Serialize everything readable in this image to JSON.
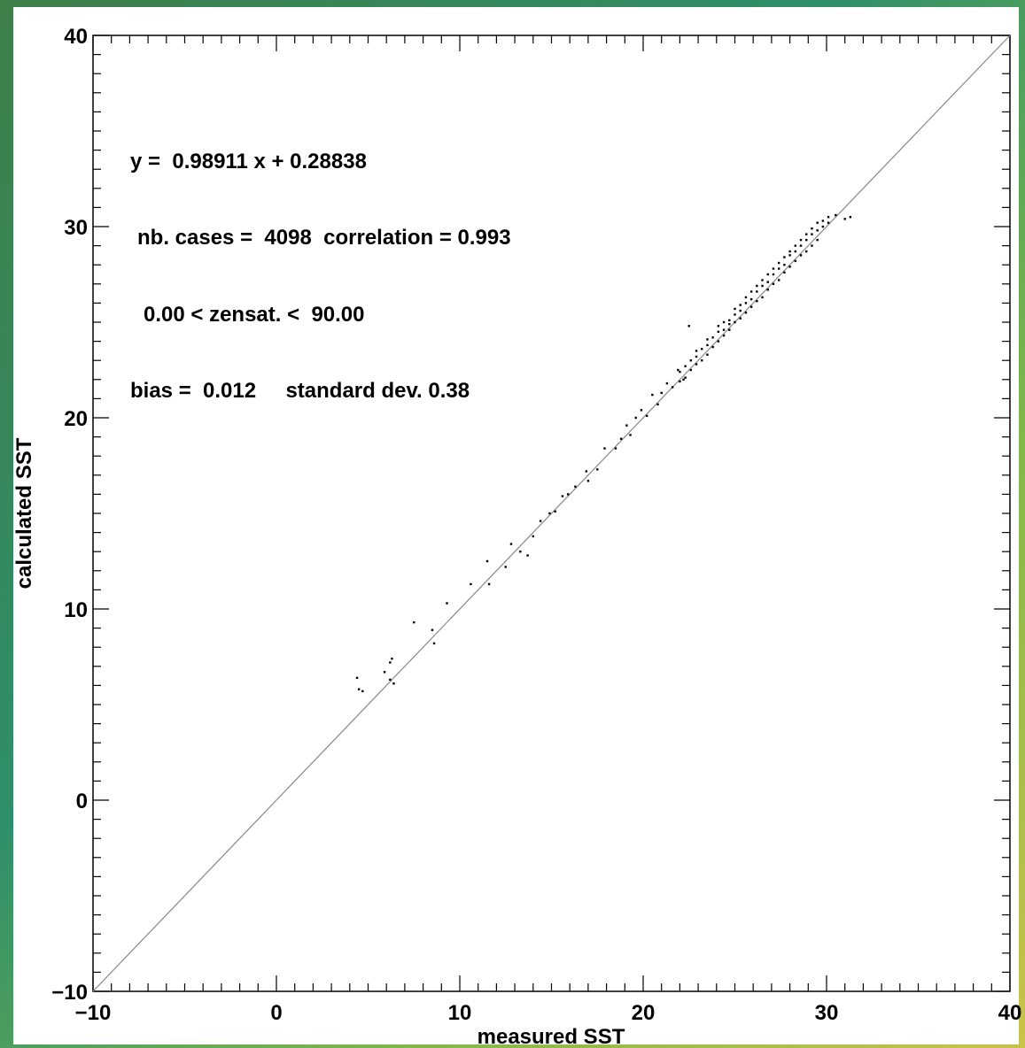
{
  "chart_data": {
    "type": "scatter",
    "x_label": "measured SST",
    "y_label": "calculated SST",
    "annotations": [
      "y =  0.98911 x + 0.28838",
      "nb. cases =  4098  correlation = 0.993",
      "0.00 < zensat. <  90.00",
      "bias =  0.012     standard dev. 0.38"
    ],
    "xlim": [
      -10,
      40
    ],
    "ylim": [
      -10,
      40
    ],
    "xticks": [
      {
        "value": -10,
        "label": "−10"
      },
      0,
      10,
      20,
      30,
      40
    ],
    "yticks": [
      {
        "value": -10,
        "label": "−10"
      },
      0,
      10,
      20,
      30,
      40
    ],
    "minor_ticks": [
      -9,
      -8,
      -7,
      -6,
      -5,
      -4,
      -3,
      -2,
      -1,
      1,
      2,
      3,
      4,
      5,
      6,
      7,
      8,
      9,
      11,
      12,
      13,
      14,
      15,
      16,
      17,
      18,
      19,
      21,
      22,
      23,
      24,
      25,
      26,
      27,
      28,
      29,
      31,
      32,
      33,
      34,
      35,
      36,
      37,
      38,
      39
    ],
    "color": "#000000",
    "line": {
      "x": [
        -10,
        40
      ],
      "y": [
        -10,
        40
      ],
      "color": "#888888"
    },
    "x": [
      4.4,
      4.5,
      4.7,
      5.9,
      6.2,
      6.3,
      6.4,
      6.2,
      7.5,
      8.5,
      8.6,
      9.3,
      10.6,
      11.5,
      11.6,
      12.5,
      12.8,
      13.3,
      13.7,
      14.0,
      14.4,
      14.9,
      15.2,
      15.6,
      15.9,
      16.3,
      16.9,
      17.0,
      17.5,
      17.9,
      18.5,
      18.8,
      19.1,
      19.3,
      19.6,
      19.9,
      20.2,
      20.5,
      20.8,
      21.0,
      21.3,
      21.6,
      21.9,
      22.2,
      22.5,
      22.0,
      22.0,
      22.3,
      22.3,
      22.6,
      22.6,
      22.9,
      22.9,
      22.9,
      23.2,
      23.2,
      23.5,
      23.5,
      23.5,
      23.8,
      23.8,
      24.1,
      24.1,
      24.1,
      24.4,
      24.4,
      24.4,
      24.7,
      24.7,
      24.7,
      25.0,
      25.0,
      25.0,
      25.3,
      25.3,
      25.3,
      25.6,
      25.6,
      25.6,
      25.9,
      25.9,
      25.9,
      26.2,
      26.2,
      26.2,
      26.5,
      26.5,
      26.5,
      26.8,
      26.8,
      26.8,
      27.1,
      27.1,
      27.1,
      27.4,
      27.4,
      27.4,
      27.7,
      27.7,
      27.7,
      28.0,
      28.0,
      28.0,
      28.3,
      28.3,
      28.3,
      28.6,
      28.6,
      28.6,
      28.9,
      28.9,
      28.9,
      29.2,
      29.2,
      29.2,
      29.5,
      29.5,
      29.5,
      29.8,
      29.8,
      30.1,
      30.1,
      30.5,
      31.0,
      31.3
    ],
    "values": [
      6.4,
      5.8,
      5.7,
      6.7,
      7.2,
      7.4,
      6.1,
      6.3,
      9.3,
      8.9,
      8.2,
      10.3,
      11.3,
      12.5,
      11.3,
      12.2,
      13.4,
      13.0,
      12.8,
      13.8,
      14.6,
      15.0,
      15.1,
      15.9,
      16.0,
      16.4,
      17.2,
      16.7,
      17.3,
      18.4,
      18.4,
      18.9,
      19.6,
      19.1,
      20.0,
      20.4,
      20.1,
      21.2,
      20.7,
      21.3,
      21.8,
      21.6,
      22.5,
      22.0,
      24.8,
      22.4,
      21.9,
      22.7,
      22.1,
      23.0,
      22.5,
      23.2,
      22.8,
      23.5,
      23.6,
      23.0,
      23.8,
      23.3,
      24.1,
      24.2,
      23.7,
      24.5,
      24.0,
      24.8,
      24.6,
      24.3,
      25.0,
      25.1,
      24.6,
      24.9,
      25.4,
      25.0,
      25.7,
      25.6,
      25.2,
      25.9,
      26.0,
      25.5,
      26.3,
      26.2,
      25.8,
      26.6,
      26.6,
      26.1,
      26.9,
      26.9,
      26.3,
      27.2,
      27.1,
      26.7,
      27.5,
      27.5,
      27.0,
      27.8,
      27.8,
      27.2,
      28.1,
      28.0,
      27.6,
      28.4,
      28.5,
      27.9,
      28.7,
      28.7,
      28.2,
      29.0,
      29.0,
      28.5,
      29.3,
      29.3,
      28.7,
      29.6,
      29.6,
      29.0,
      29.9,
      29.8,
      29.3,
      30.2,
      30.3,
      30.0,
      30.5,
      30.2,
      30.6,
      30.4,
      30.5
    ]
  }
}
